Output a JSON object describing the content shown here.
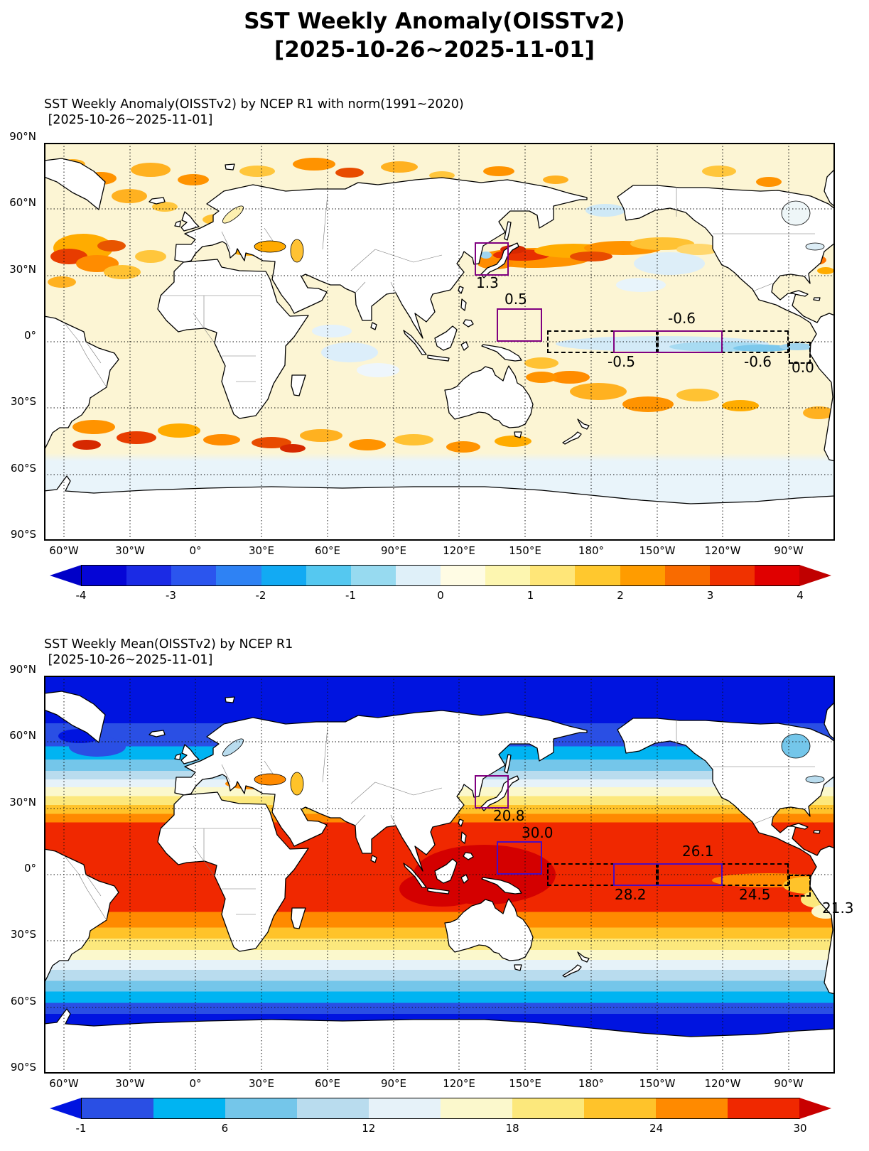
{
  "main_title": {
    "line1": "SST Weekly Anomaly(OISSTv2)",
    "line2": "[2025-10-26~2025-11-01]"
  },
  "axis": {
    "x_ticks": [
      "60°W",
      "30°W",
      "0°",
      "30°E",
      "60°E",
      "90°E",
      "120°E",
      "150°E",
      "180°",
      "150°W",
      "120°W",
      "90°W"
    ],
    "y_ticks": [
      "90°N",
      "60°N",
      "30°N",
      "0°",
      "30°S",
      "60°S",
      "90°S"
    ]
  },
  "anomaly_panel": {
    "subtitle_line1": "SST Weekly Anomaly(OISSTv2) by NCEP R1 with norm(1991~2020)",
    "subtitle_line2": " [2025-10-26~2025-11-01]",
    "regions": {
      "japan": "1.3",
      "nino_west": "0.5",
      "nino34": "-0.6",
      "nino4": "-0.5",
      "nino3": "-0.6",
      "nino12": "0.0"
    },
    "colorbar": {
      "tick_labels": [
        "-4",
        "-3",
        "-2",
        "-1",
        "0",
        "1",
        "2",
        "3",
        "4"
      ],
      "arrow_left": "#0000c8",
      "arrow_right": "#c00000",
      "segment_colors": [
        "#0505d6",
        "#1b2be5",
        "#2b55ee",
        "#2e82f4",
        "#12aaf3",
        "#55c8f0",
        "#97daf0",
        "#dff0f9",
        "#fffce4",
        "#fdf6b0",
        "#ffe678",
        "#ffc82e",
        "#ff9c00",
        "#f96b00",
        "#f03200",
        "#e00000"
      ]
    }
  },
  "mean_panel": {
    "subtitle_line1": "SST Weekly Mean(OISSTv2) by NCEP R1",
    "subtitle_line2": " [2025-10-26~2025-11-01]",
    "regions": {
      "japan": "20.8",
      "nino_west": "30.0",
      "nino34": "26.1",
      "nino4": "28.2",
      "nino3": "24.5",
      "nino12": "21.3"
    },
    "colorbar": {
      "tick_labels": [
        "-1",
        "6",
        "12",
        "18",
        "24",
        "30"
      ],
      "arrow_left": "#0014e0",
      "arrow_right": "#c80000",
      "segment_colors": [
        "#2a4fe4",
        "#00b4f2",
        "#74c6ea",
        "#b9dcee",
        "#e6f2f9",
        "#fbf8cc",
        "#fce87c",
        "#ffc32a",
        "#ff8a00",
        "#f02800"
      ]
    }
  },
  "chart_data": [
    {
      "type": "heatmap",
      "title": "SST Weekly Anomaly(OISSTv2) by NCEP R1 with norm(1991~2020) [2025-10-26~2025-11-01]",
      "projection": "world map, equirectangular, lon 60W eastward to 90W, lat 90N to 90S",
      "xlabel_ticks": [
        "60°W",
        "30°W",
        "0°",
        "30°E",
        "60°E",
        "90°E",
        "120°E",
        "150°E",
        "180°",
        "150°W",
        "120°W",
        "90°W"
      ],
      "ylabel_ticks": [
        "90°N",
        "60°N",
        "30°N",
        "0°",
        "30°S",
        "60°S",
        "90°S"
      ],
      "colorbar_ticks": [
        -4,
        -3,
        -2,
        -1,
        0,
        1,
        2,
        3,
        4
      ],
      "legend_position": "bottom",
      "grid": true,
      "region_values": [
        {
          "region": "Japan area box",
          "value": 1.3
        },
        {
          "region": "tropical west Pacific box",
          "value": 0.5
        },
        {
          "region": "equatorial Pacific west dashed box (NINO4)",
          "value": -0.5
        },
        {
          "region": "equatorial Pacific central box (NINO3.4)",
          "value": -0.6
        },
        {
          "region": "equatorial Pacific east dashed box (NINO3)",
          "value": -0.6
        },
        {
          "region": "South America coast dashed box (NINO1+2)",
          "value": 0.0
        }
      ]
    },
    {
      "type": "heatmap",
      "title": "SST Weekly Mean(OISSTv2) by NCEP R1 [2025-10-26~2025-11-01]",
      "projection": "world map, equirectangular, lon 60W eastward to 90W, lat 90N to 90S",
      "xlabel_ticks": [
        "60°W",
        "30°W",
        "0°",
        "30°E",
        "60°E",
        "90°E",
        "120°E",
        "150°E",
        "180°",
        "150°W",
        "120°W",
        "90°W"
      ],
      "ylabel_ticks": [
        "90°N",
        "60°N",
        "30°N",
        "0°",
        "30°S",
        "60°S",
        "90°S"
      ],
      "colorbar_ticks": [
        -1,
        6,
        12,
        18,
        24,
        30
      ],
      "legend_position": "bottom",
      "grid": true,
      "region_values": [
        {
          "region": "Japan area box",
          "value": 20.8
        },
        {
          "region": "tropical west Pacific box",
          "value": 30.0
        },
        {
          "region": "equatorial Pacific west dashed box (NINO4)",
          "value": 28.2
        },
        {
          "region": "equatorial Pacific central box (NINO3.4)",
          "value": 26.1
        },
        {
          "region": "equatorial Pacific east dashed box (NINO3)",
          "value": 24.5
        },
        {
          "region": "South America coast dashed box (NINO1+2)",
          "value": 21.3
        }
      ]
    }
  ]
}
